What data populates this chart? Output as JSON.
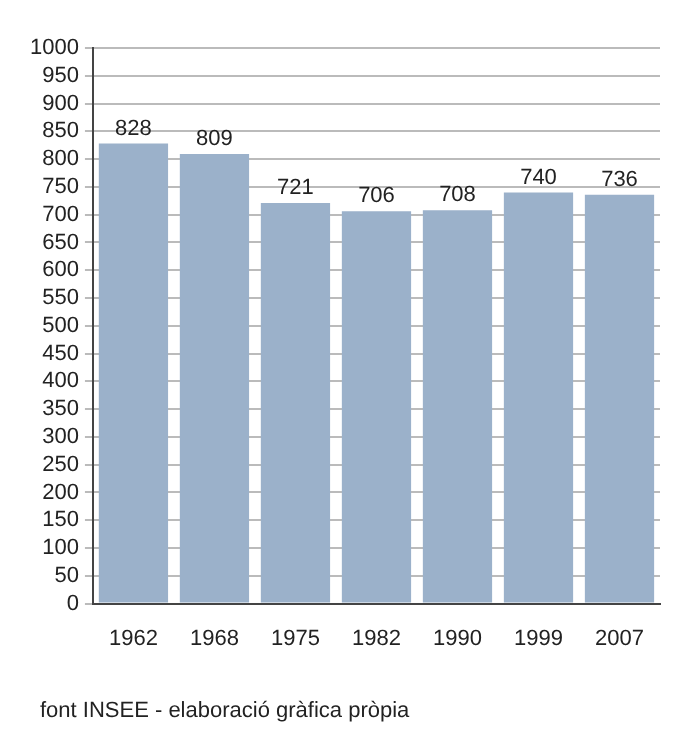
{
  "chart_data": {
    "type": "bar",
    "categories": [
      "1962",
      "1968",
      "1975",
      "1982",
      "1990",
      "1999",
      "2007"
    ],
    "values": [
      828,
      809,
      721,
      706,
      708,
      740,
      736
    ],
    "color": "#9bb1ca",
    "ylim": [
      0,
      1000
    ],
    "yticks": [
      0,
      50,
      100,
      150,
      200,
      250,
      300,
      350,
      400,
      450,
      500,
      550,
      600,
      650,
      700,
      750,
      800,
      850,
      900,
      950,
      1000
    ],
    "grid": "y",
    "data_labels": true,
    "annotations": [
      "font INSEE - elaboració gràfica pròpia"
    ]
  }
}
